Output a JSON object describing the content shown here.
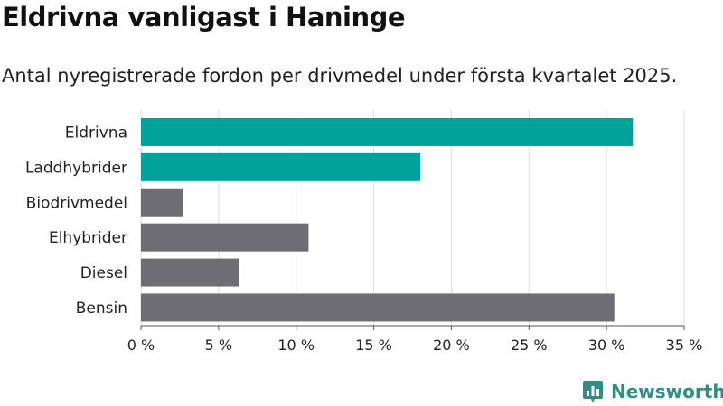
{
  "title": "Eldrivna vanligast i Haninge",
  "subtitle": "Antal nyregistrerade fordon per drivmedel under första kvartalet 2025.",
  "brand": {
    "name": "Newsworthy",
    "icon": "newsworthy-logo-icon"
  },
  "colors": {
    "highlight": "#00a39a",
    "default": "#6e6d74",
    "grid": "#dddddd"
  },
  "chart_data": {
    "type": "bar",
    "orientation": "horizontal",
    "categories": [
      "Eldrivna",
      "Laddhybrider",
      "Biodrivmedel",
      "Elhybrider",
      "Diesel",
      "Bensin"
    ],
    "values": [
      31.7,
      18.0,
      2.7,
      10.8,
      6.3,
      30.5
    ],
    "highlighted": [
      true,
      true,
      false,
      false,
      false,
      false
    ],
    "xlim": [
      0,
      35
    ],
    "xticks": [
      0,
      5,
      10,
      15,
      20,
      25,
      30,
      35
    ],
    "xtick_labels": [
      "0 %",
      "5 %",
      "10 %",
      "15 %",
      "20 %",
      "25 %",
      "30 %",
      "35 %"
    ],
    "grid": true
  }
}
